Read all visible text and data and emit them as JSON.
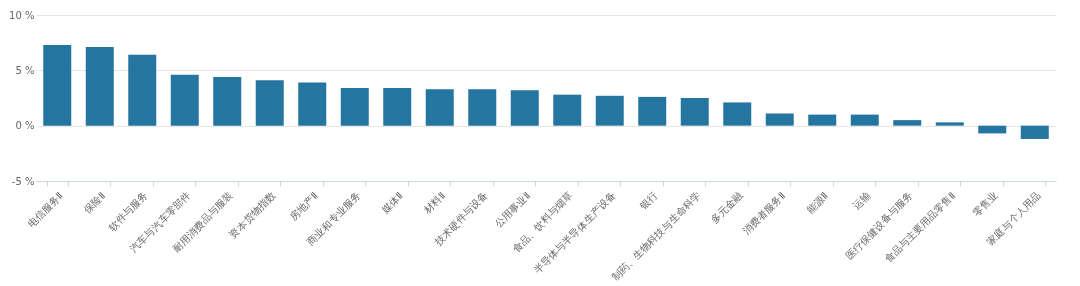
{
  "chart_data": {
    "type": "bar",
    "categories": [
      "电信服务Ⅱ",
      "保险Ⅱ",
      "软件与服务",
      "汽车与汽车零部件",
      "耐用消费品与服装",
      "资本货物指数",
      "房地产Ⅱ",
      "商业和专业服务",
      "媒体Ⅱ",
      "材料Ⅱ",
      "技术硬件与设备",
      "公用事业Ⅱ",
      "食品、饮料与烟草",
      "半导体与半导体生产设备",
      "银行",
      "制药、生物科技与生命科学",
      "多元金融",
      "消费者服务Ⅱ",
      "能源Ⅱ",
      "运输",
      "医疗保健设备与服务",
      "食品与主要用品零售Ⅱ",
      "零售业",
      "家庭与个人用品"
    ],
    "values": [
      7.3,
      7.1,
      6.4,
      4.6,
      4.4,
      4.1,
      3.9,
      3.4,
      3.4,
      3.3,
      3.3,
      3.2,
      2.8,
      2.7,
      2.6,
      2.5,
      2.1,
      1.1,
      1.0,
      1.0,
      0.5,
      0.3,
      -0.7,
      -1.2
    ],
    "color": "#2475a0",
    "ylim": [
      -5,
      10
    ],
    "yticks": [
      {
        "value": -5,
        "label": "-5 %"
      },
      {
        "value": 0,
        "label": "0 %"
      },
      {
        "value": 5,
        "label": "5 %"
      },
      {
        "value": 10,
        "label": "10 %"
      }
    ],
    "grid": "y"
  }
}
